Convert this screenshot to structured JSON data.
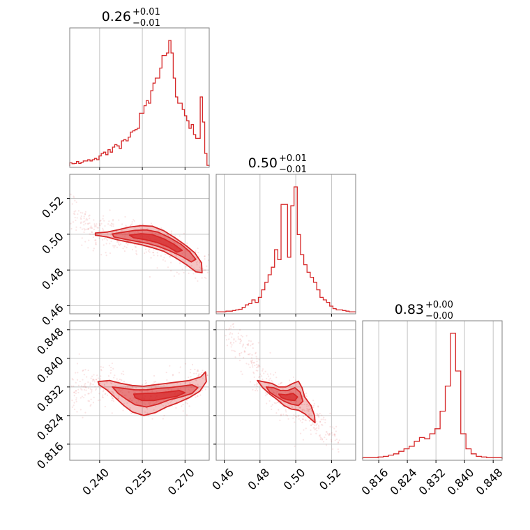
{
  "figure": {
    "type": "corner-plot",
    "color": "#d62728"
  },
  "chart_data": {
    "type": "corner",
    "color": "#d62728",
    "parameters": [
      {
        "index": 0,
        "range": [
          0.2295,
          0.2785
        ],
        "ticks": [
          0.24,
          0.255,
          0.27
        ],
        "tick_labels": [
          "0.240",
          "0.255",
          "0.270"
        ],
        "title": {
          "value": "0.26",
          "plus": "+0.01",
          "minus": "−0.01"
        },
        "histogram": [
          0.025,
          0.018,
          0.02,
          0.035,
          0.02,
          0.03,
          0.04,
          0.04,
          0.05,
          0.04,
          0.05,
          0.06,
          0.05,
          0.08,
          0.1,
          0.11,
          0.09,
          0.13,
          0.11,
          0.15,
          0.17,
          0.16,
          0.14,
          0.2,
          0.21,
          0.2,
          0.23,
          0.27,
          0.28,
          0.29,
          0.3,
          0.42,
          0.42,
          0.48,
          0.52,
          0.5,
          0.6,
          0.66,
          0.7,
          0.7,
          0.78,
          0.88,
          0.88,
          0.9,
          1.0,
          0.9,
          0.7,
          0.55,
          0.5,
          0.5,
          0.45,
          0.4,
          0.36,
          0.3,
          0.33,
          0.25,
          0.22,
          0.22,
          0.55,
          0.35,
          0.1,
          0.005
        ]
      },
      {
        "index": 1,
        "range": [
          0.4555,
          0.5335
        ],
        "ticks": [
          0.46,
          0.48,
          0.5,
          0.52
        ],
        "tick_labels": [
          "0.46",
          "0.48",
          "0.50",
          "0.52"
        ],
        "title": {
          "value": "0.50",
          "plus": "+0.01",
          "minus": "−0.01"
        },
        "histogram": [
          0.005,
          0.005,
          0.005,
          0.01,
          0.01,
          0.015,
          0.02,
          0.025,
          0.04,
          0.06,
          0.07,
          0.1,
          0.08,
          0.12,
          0.18,
          0.24,
          0.3,
          0.36,
          0.5,
          0.42,
          0.86,
          0.86,
          0.44,
          0.85,
          1.0,
          0.62,
          0.46,
          0.38,
          0.32,
          0.28,
          0.24,
          0.18,
          0.12,
          0.1,
          0.08,
          0.05,
          0.03,
          0.02,
          0.02,
          0.015,
          0.01,
          0.005,
          0.005
        ]
      },
      {
        "index": 2,
        "range": [
          0.8115,
          0.8505
        ],
        "ticks": [
          0.816,
          0.824,
          0.832,
          0.84,
          0.848
        ],
        "tick_labels": [
          "0.816",
          "0.824",
          "0.832",
          "0.840",
          "0.848"
        ],
        "title": {
          "value": "0.83",
          "plus": "+0.00",
          "minus": "−0.00"
        },
        "histogram": [
          0.01,
          0.01,
          0.01,
          0.015,
          0.02,
          0.03,
          0.04,
          0.06,
          0.08,
          0.1,
          0.14,
          0.17,
          0.16,
          0.2,
          0.24,
          0.38,
          0.58,
          1.0,
          0.7,
          0.2,
          0.08,
          0.04,
          0.02,
          0.015,
          0.01,
          0.01,
          0.01
        ]
      }
    ],
    "scatter_panels": [
      {
        "x_param": 0,
        "y_param": 1,
        "ridge": [
          [
            0.2305,
            0.5108
          ],
          [
            0.2345,
            0.5058
          ],
          [
            0.2385,
            0.502
          ],
          [
            0.2425,
            0.5
          ],
          [
            0.2465,
            0.4993
          ],
          [
            0.2505,
            0.4988
          ],
          [
            0.2545,
            0.4978
          ],
          [
            0.2585,
            0.4963
          ],
          [
            0.2625,
            0.494
          ],
          [
            0.2665,
            0.4905
          ],
          [
            0.2705,
            0.4865
          ],
          [
            0.2745,
            0.4825
          ],
          [
            0.278,
            0.4795
          ]
        ],
        "contours": [
          [
            [
              0.2385,
              0.5007
            ],
            [
              0.2425,
              0.5012
            ],
            [
              0.2465,
              0.5025
            ],
            [
              0.2505,
              0.504
            ],
            [
              0.2545,
              0.5048
            ],
            [
              0.2585,
              0.5045
            ],
            [
              0.2625,
              0.502
            ],
            [
              0.2665,
              0.498
            ],
            [
              0.2705,
              0.4935
            ],
            [
              0.2735,
              0.4895
            ],
            [
              0.2758,
              0.484
            ],
            [
              0.276,
              0.4785
            ],
            [
              0.2738,
              0.479
            ],
            [
              0.2705,
              0.483
            ],
            [
              0.2665,
              0.487
            ],
            [
              0.2625,
              0.4905
            ],
            [
              0.2585,
              0.4925
            ],
            [
              0.2545,
              0.4942
            ],
            [
              0.2505,
              0.4955
            ],
            [
              0.2465,
              0.4968
            ],
            [
              0.2425,
              0.4985
            ],
            [
              0.2385,
              0.4995
            ]
          ],
          [
            [
              0.2445,
              0.5002
            ],
            [
              0.2485,
              0.5012
            ],
            [
              0.2525,
              0.5022
            ],
            [
              0.2565,
              0.5024
            ],
            [
              0.2605,
              0.5012
            ],
            [
              0.2645,
              0.4982
            ],
            [
              0.2685,
              0.4945
            ],
            [
              0.2715,
              0.4905
            ],
            [
              0.2738,
              0.486
            ],
            [
              0.2722,
              0.4845
            ],
            [
              0.269,
              0.4875
            ],
            [
              0.265,
              0.4905
            ],
            [
              0.261,
              0.493
            ],
            [
              0.257,
              0.4948
            ],
            [
              0.253,
              0.496
            ],
            [
              0.249,
              0.4972
            ],
            [
              0.245,
              0.4985
            ]
          ],
          [
            [
              0.2505,
              0.4995
            ],
            [
              0.2545,
              0.5003
            ],
            [
              0.2585,
              0.4998
            ],
            [
              0.2625,
              0.4975
            ],
            [
              0.266,
              0.4945
            ],
            [
              0.269,
              0.491
            ],
            [
              0.2672,
              0.49
            ],
            [
              0.264,
              0.493
            ],
            [
              0.26,
              0.4955
            ],
            [
              0.256,
              0.497
            ],
            [
              0.252,
              0.498
            ]
          ]
        ],
        "spread": 0.006
      },
      {
        "x_param": 0,
        "y_param": 2,
        "ridge": [
          [
            0.2305,
            0.8296
          ],
          [
            0.2345,
            0.8316
          ],
          [
            0.2385,
            0.8331
          ],
          [
            0.2425,
            0.8326
          ],
          [
            0.2465,
            0.831
          ],
          [
            0.2505,
            0.8298
          ],
          [
            0.2545,
            0.8292
          ],
          [
            0.2585,
            0.8292
          ],
          [
            0.2625,
            0.8298
          ],
          [
            0.2665,
            0.8308
          ],
          [
            0.2705,
            0.8318
          ],
          [
            0.2745,
            0.8334
          ],
          [
            0.278,
            0.8352
          ]
        ],
        "contours": [
          [
            [
              0.2395,
              0.8335
            ],
            [
              0.2435,
              0.8338
            ],
            [
              0.2475,
              0.833
            ],
            [
              0.2515,
              0.8324
            ],
            [
              0.2555,
              0.8322
            ],
            [
              0.2595,
              0.8326
            ],
            [
              0.2635,
              0.833
            ],
            [
              0.2675,
              0.8334
            ],
            [
              0.2715,
              0.8338
            ],
            [
              0.2755,
              0.8348
            ],
            [
              0.2772,
              0.8362
            ],
            [
              0.2775,
              0.8335
            ],
            [
              0.2752,
              0.8308
            ],
            [
              0.2715,
              0.829
            ],
            [
              0.2675,
              0.8276
            ],
            [
              0.2635,
              0.8264
            ],
            [
              0.2595,
              0.8248
            ],
            [
              0.2555,
              0.824
            ],
            [
              0.2515,
              0.825
            ],
            [
              0.2485,
              0.8268
            ],
            [
              0.2455,
              0.829
            ],
            [
              0.2425,
              0.8312
            ],
            [
              0.2398,
              0.8326
            ]
          ],
          [
            [
              0.2445,
              0.832
            ],
            [
              0.2485,
              0.8316
            ],
            [
              0.2525,
              0.8312
            ],
            [
              0.2565,
              0.8312
            ],
            [
              0.2605,
              0.8316
            ],
            [
              0.2645,
              0.8318
            ],
            [
              0.2685,
              0.8322
            ],
            [
              0.2725,
              0.8326
            ],
            [
              0.2745,
              0.8318
            ],
            [
              0.2725,
              0.8302
            ],
            [
              0.2685,
              0.8292
            ],
            [
              0.2645,
              0.8284
            ],
            [
              0.2605,
              0.8272
            ],
            [
              0.2565,
              0.8264
            ],
            [
              0.2525,
              0.827
            ],
            [
              0.2495,
              0.8285
            ],
            [
              0.2465,
              0.8302
            ]
          ],
          [
            [
              0.252,
              0.83
            ],
            [
              0.256,
              0.8302
            ],
            [
              0.26,
              0.8303
            ],
            [
              0.264,
              0.8306
            ],
            [
              0.268,
              0.831
            ],
            [
              0.27,
              0.8304
            ],
            [
              0.2672,
              0.8294
            ],
            [
              0.263,
              0.8288
            ],
            [
              0.259,
              0.8282
            ],
            [
              0.255,
              0.8282
            ],
            [
              0.2525,
              0.829
            ]
          ]
        ],
        "spread": 0.0032
      },
      {
        "x_param": 1,
        "y_param": 2,
        "ridge": [
          [
            0.4615,
            0.8475
          ],
          [
            0.468,
            0.844
          ],
          [
            0.4745,
            0.8398
          ],
          [
            0.4785,
            0.8362
          ],
          [
            0.483,
            0.833
          ],
          [
            0.487,
            0.8312
          ],
          [
            0.491,
            0.8298
          ],
          [
            0.495,
            0.8285
          ],
          [
            0.499,
            0.8272
          ],
          [
            0.503,
            0.8258
          ],
          [
            0.507,
            0.824
          ],
          [
            0.511,
            0.8222
          ],
          [
            0.515,
            0.8205
          ],
          [
            0.524,
            0.816
          ]
        ],
        "contours": [
          [
            [
              0.4785,
              0.8338
            ],
            [
              0.4825,
              0.8334
            ],
            [
              0.4865,
              0.833
            ],
            [
              0.4905,
              0.832
            ],
            [
              0.4945,
              0.832
            ],
            [
              0.4985,
              0.833
            ],
            [
              0.5015,
              0.8336
            ],
            [
              0.5035,
              0.8318
            ],
            [
              0.505,
              0.8292
            ],
            [
              0.5085,
              0.8268
            ],
            [
              0.5105,
              0.824
            ],
            [
              0.5108,
              0.822
            ],
            [
              0.5085,
              0.823
            ],
            [
              0.505,
              0.8245
            ],
            [
              0.5015,
              0.8255
            ],
            [
              0.4975,
              0.8258
            ],
            [
              0.4935,
              0.8268
            ],
            [
              0.4895,
              0.8285
            ],
            [
              0.4855,
              0.83
            ],
            [
              0.4815,
              0.8318
            ]
          ],
          [
            [
              0.4835,
              0.832
            ],
            [
              0.4875,
              0.8318
            ],
            [
              0.4915,
              0.831
            ],
            [
              0.4955,
              0.831
            ],
            [
              0.4995,
              0.8318
            ],
            [
              0.5025,
              0.8305
            ],
            [
              0.504,
              0.828
            ],
            [
              0.5015,
              0.8268
            ],
            [
              0.4975,
              0.8272
            ],
            [
              0.4935,
              0.828
            ],
            [
              0.4895,
              0.8292
            ],
            [
              0.4855,
              0.8305
            ]
          ],
          [
            [
              0.4905,
              0.83
            ],
            [
              0.4945,
              0.8298
            ],
            [
              0.4985,
              0.8302
            ],
            [
              0.501,
              0.8292
            ],
            [
              0.4995,
              0.8282
            ],
            [
              0.4955,
              0.8284
            ],
            [
              0.492,
              0.829
            ]
          ]
        ],
        "spread": 0.0032
      }
    ]
  }
}
